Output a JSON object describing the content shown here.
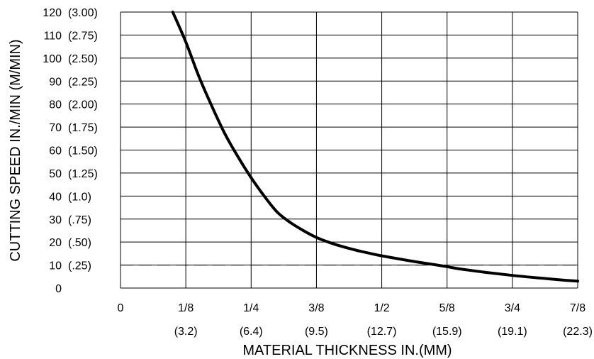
{
  "chart_data": {
    "type": "line",
    "title": "",
    "xlabel": "MATERIAL THICKNESS IN.(MM)",
    "ylabel": "CUTTING SPEED IN./MIN (M/MIN)",
    "xlim": [
      0,
      0.875
    ],
    "ylim": [
      0,
      120
    ],
    "grid": true,
    "x_ticks": [
      {
        "value": 0,
        "label": "0",
        "sublabel": ""
      },
      {
        "value": 0.125,
        "label": "1/8",
        "sublabel": "(3.2)"
      },
      {
        "value": 0.25,
        "label": "1/4",
        "sublabel": "(6.4)"
      },
      {
        "value": 0.375,
        "label": "3/8",
        "sublabel": "(9.5)"
      },
      {
        "value": 0.5,
        "label": "1/2",
        "sublabel": "(12.7)"
      },
      {
        "value": 0.625,
        "label": "5/8",
        "sublabel": "(15.9)"
      },
      {
        "value": 0.75,
        "label": "3/4",
        "sublabel": "(19.1)"
      },
      {
        "value": 0.875,
        "label": "7/8",
        "sublabel": "(22.3)"
      }
    ],
    "y_ticks": [
      {
        "value": 0,
        "label": "0",
        "metric": ""
      },
      {
        "value": 10,
        "label": "10",
        "metric": "(.25)"
      },
      {
        "value": 20,
        "label": "20",
        "metric": "(.50)"
      },
      {
        "value": 30,
        "label": "30",
        "metric": "(.75)"
      },
      {
        "value": 40,
        "label": "40",
        "metric": "(1.0)"
      },
      {
        "value": 50,
        "label": "50",
        "metric": "(1.25)"
      },
      {
        "value": 60,
        "label": "60",
        "metric": "(1.50)"
      },
      {
        "value": 70,
        "label": "70",
        "metric": "(1.75)"
      },
      {
        "value": 80,
        "label": "80",
        "metric": "(2.00)"
      },
      {
        "value": 90,
        "label": "90",
        "metric": "(2.25)"
      },
      {
        "value": 100,
        "label": "100",
        "metric": "(2.50)"
      },
      {
        "value": 110,
        "label": "110",
        "metric": "(2.75)"
      },
      {
        "value": 120,
        "label": "120",
        "metric": "(3.00)"
      }
    ],
    "reference_lines": [
      {
        "axis": "y",
        "value": 10,
        "style": "dashed"
      }
    ],
    "series": [
      {
        "points": [
          [
            0.1,
            120
          ],
          [
            0.125,
            107
          ],
          [
            0.15,
            92
          ],
          [
            0.175,
            79
          ],
          [
            0.2,
            67
          ],
          [
            0.225,
            57
          ],
          [
            0.25,
            48
          ],
          [
            0.275,
            40
          ],
          [
            0.3,
            33
          ],
          [
            0.325,
            28.5
          ],
          [
            0.35,
            25
          ],
          [
            0.375,
            22
          ],
          [
            0.4,
            19.8
          ],
          [
            0.425,
            18
          ],
          [
            0.45,
            16.5
          ],
          [
            0.475,
            15.2
          ],
          [
            0.5,
            14
          ],
          [
            0.55,
            12
          ],
          [
            0.6,
            10.2
          ],
          [
            0.625,
            9.3
          ],
          [
            0.65,
            8.3
          ],
          [
            0.7,
            6.8
          ],
          [
            0.75,
            5.5
          ],
          [
            0.8,
            4.4
          ],
          [
            0.85,
            3.4
          ],
          [
            0.875,
            3
          ]
        ]
      }
    ]
  },
  "colors": {
    "background": "#ffffff",
    "grid": "#000000",
    "curve": "#000000",
    "text": "#000000"
  }
}
